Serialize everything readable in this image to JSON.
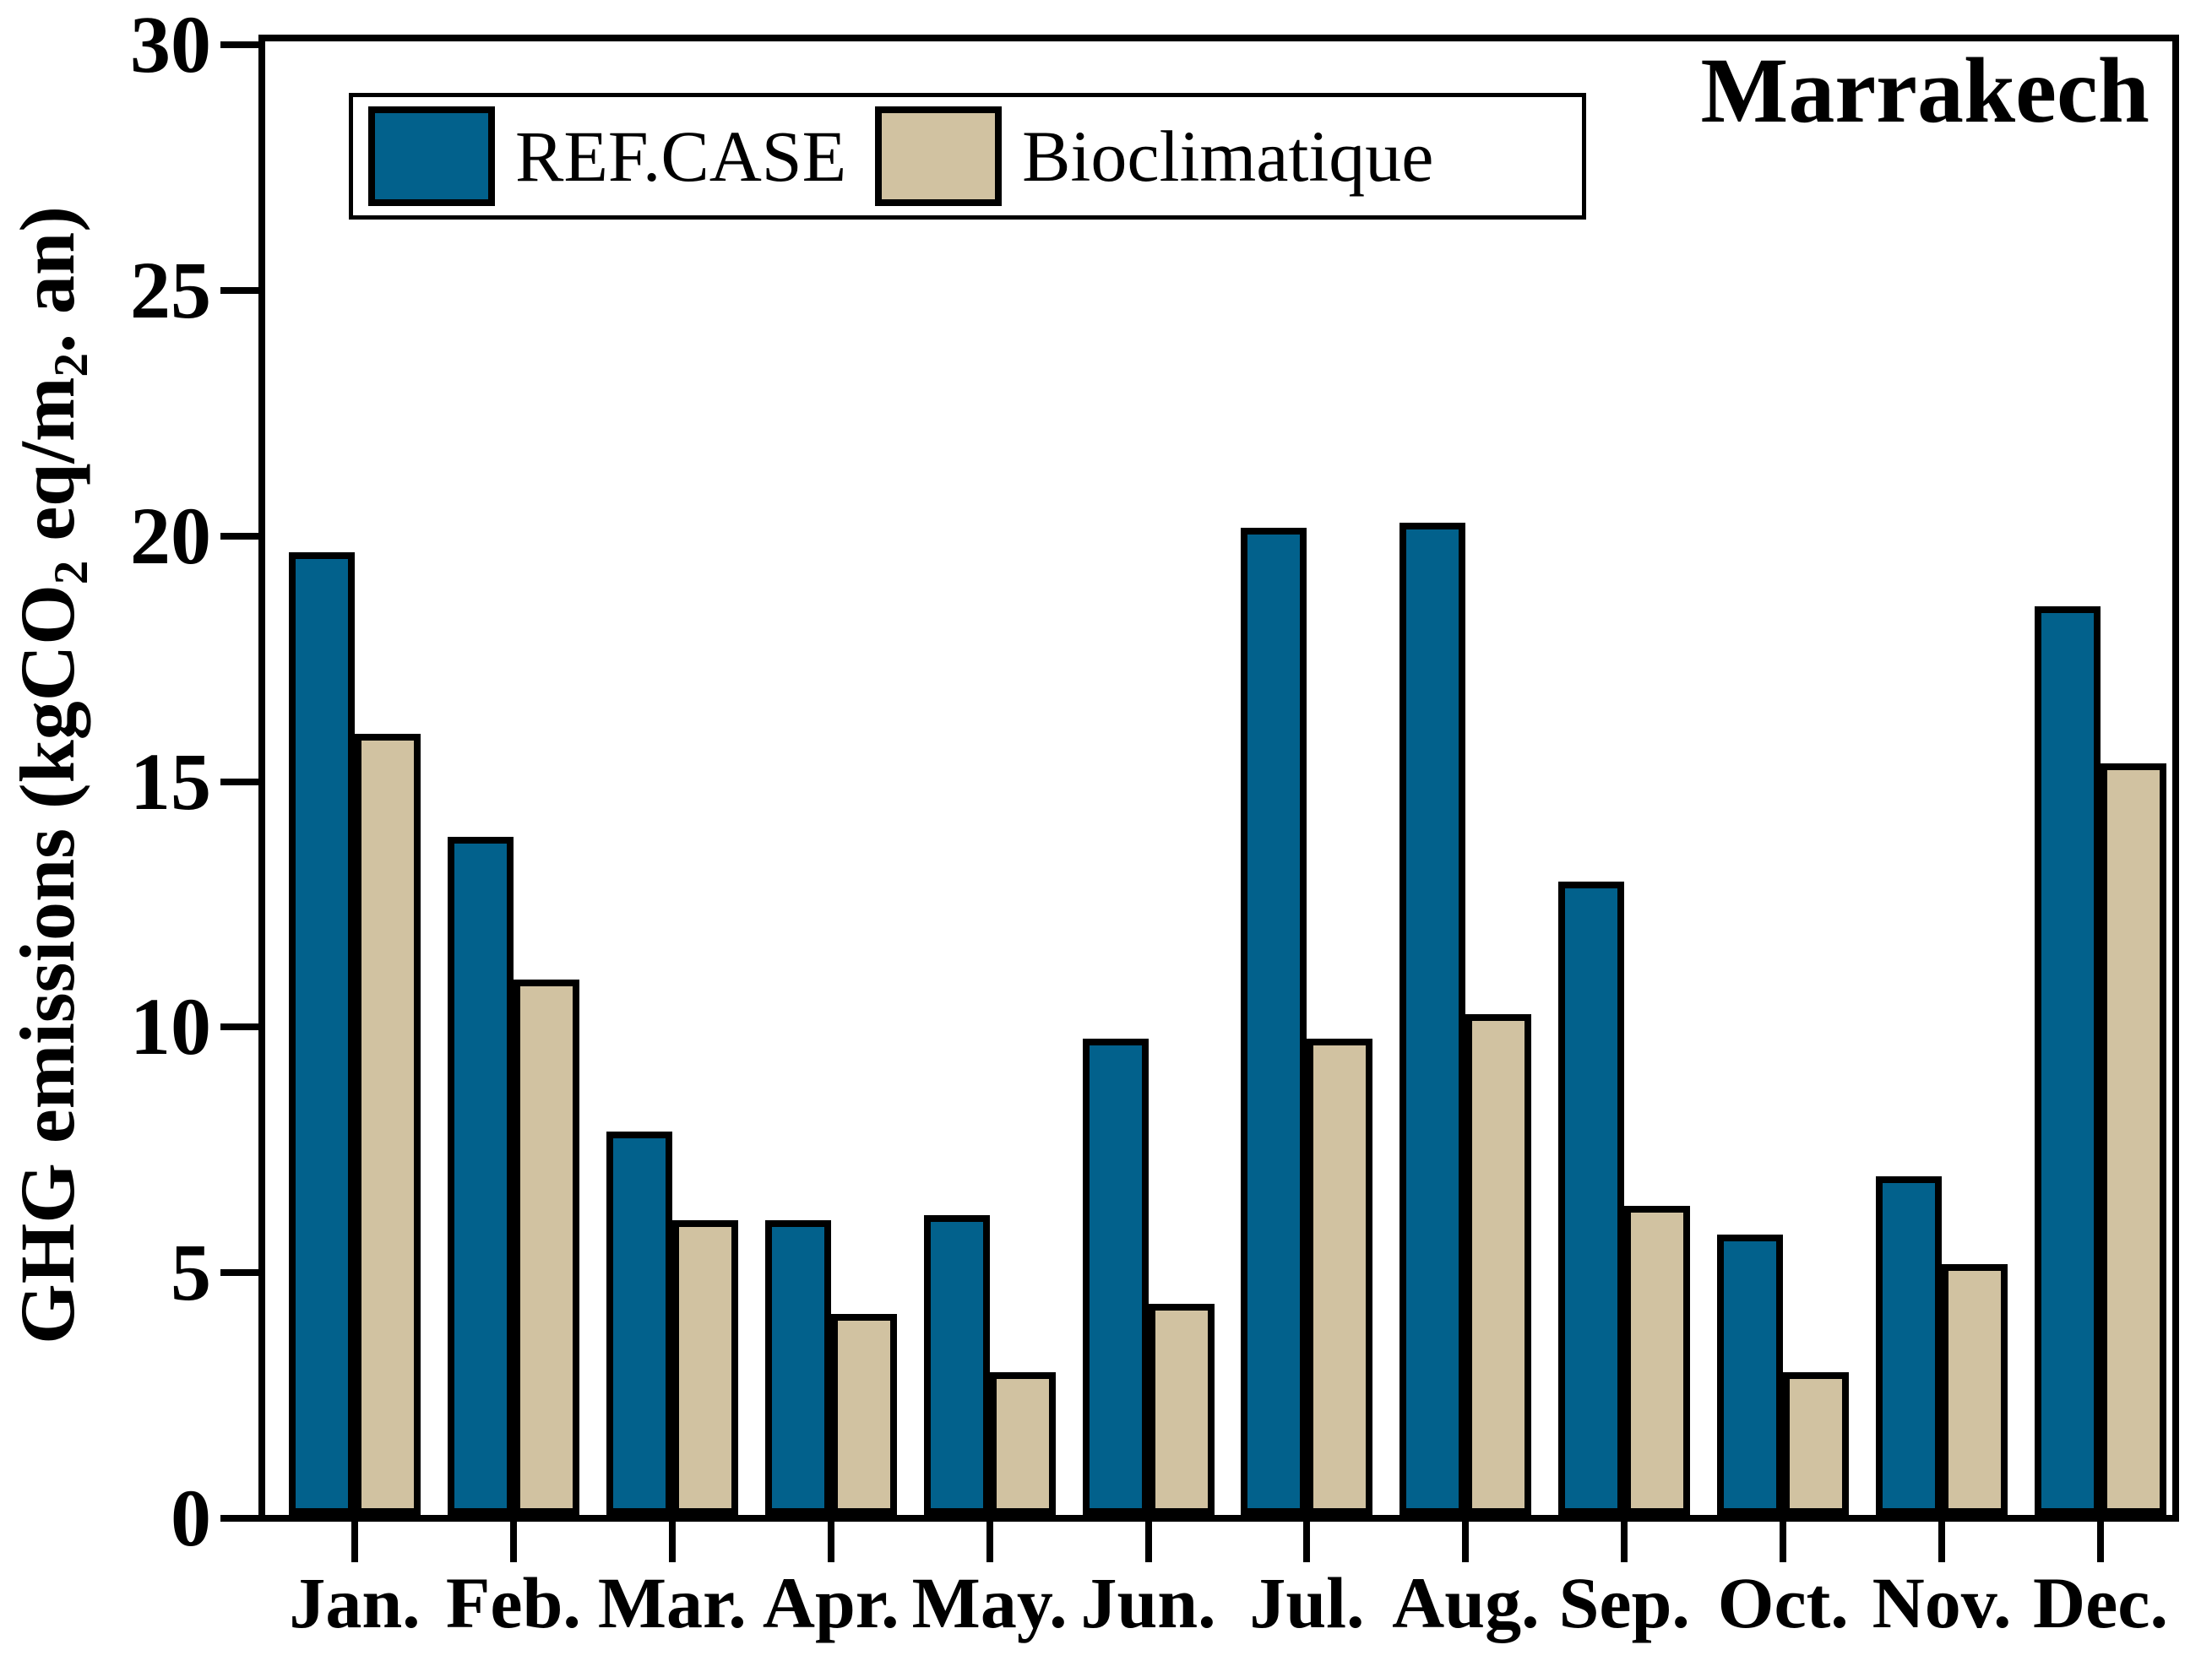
{
  "title": "Marrakech",
  "legend": {
    "items": [
      {
        "label": "REF.CASE",
        "color": "#02618C"
      },
      {
        "label": "Bioclimatique",
        "color": "#D1C2A1"
      }
    ]
  },
  "y_axis": {
    "label_parts": [
      "GHG emissions (kgCO",
      "2",
      " eq/m",
      "2",
      ". an)"
    ],
    "tick_labels": [
      "0",
      "5",
      "10",
      "15",
      "20",
      "25",
      "30"
    ]
  },
  "chart_data": {
    "type": "bar",
    "title": "Marrakech",
    "categories": [
      "Jan.",
      "Feb.",
      "Mar.",
      "Apr.",
      "May.",
      "Jun.",
      "Jul.",
      "Aug.",
      "Sep.",
      "Oct.",
      "Nov.",
      "Dec."
    ],
    "series": [
      {
        "name": "REF.CASE",
        "color": "#02618C",
        "values": [
          19.6,
          13.8,
          7.8,
          6.0,
          6.1,
          9.7,
          20.1,
          20.2,
          12.9,
          5.7,
          6.9,
          18.5
        ]
      },
      {
        "name": "Bioclimatique",
        "color": "#D1C2A1",
        "values": [
          15.9,
          10.9,
          6.0,
          4.1,
          2.9,
          4.3,
          9.7,
          10.2,
          6.3,
          2.9,
          5.1,
          15.3
        ]
      }
    ],
    "xlabel": "",
    "ylabel": "GHG emissions (kgCO2 eq/m2. an)",
    "ylim": [
      0,
      30
    ],
    "ytick_step": 5,
    "grid": false,
    "legend_position": "top-left",
    "bar_edge_color": "#000000"
  }
}
